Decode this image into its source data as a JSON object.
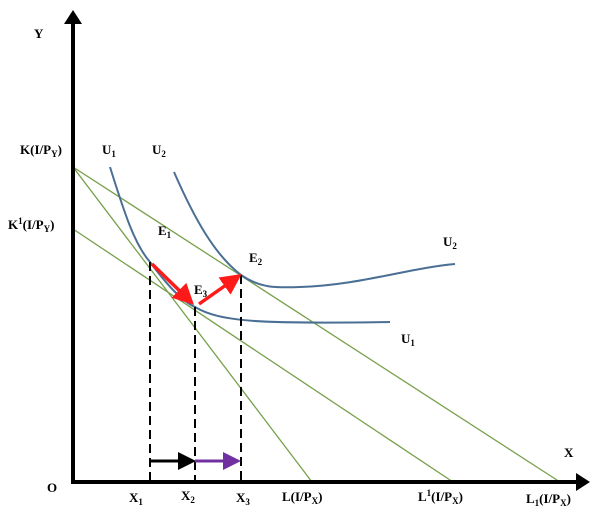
{
  "axes": {
    "y_label": "Y",
    "x_label": "X",
    "origin": "O"
  },
  "y_intercepts": {
    "k": {
      "a": "K(I/P",
      "s": "Y",
      "b": ")"
    },
    "k1": {
      "a": "K",
      "sup": "1",
      "c": "(I/P",
      "s": "Y",
      "b": ")"
    }
  },
  "x_intercepts": {
    "l": {
      "a": "L(I/P",
      "s": "X",
      "b": ")"
    },
    "l_sup1": {
      "a": "L",
      "sup": "1",
      "c": "(I/P",
      "s": "X",
      "b": ")"
    },
    "l_sub1": {
      "a": "L",
      "s1": "1",
      "c": "(I/P",
      "s": "X",
      "b": ")"
    }
  },
  "x_points": [
    {
      "a": "X",
      "s": "1"
    },
    {
      "a": "X",
      "s": "2"
    },
    {
      "a": "X",
      "s": "3"
    }
  ],
  "curves": {
    "u1_top": {
      "a": "U",
      "s": "1"
    },
    "u2_top": {
      "a": "U",
      "s": "2"
    },
    "u2_right": {
      "a": "U",
      "s": "2"
    },
    "u1_right": {
      "a": "U",
      "s": "1"
    }
  },
  "equilibria": {
    "e1": {
      "a": "E",
      "s": "1"
    },
    "e2": {
      "a": "E",
      "s": "2"
    },
    "e3": {
      "a": "E",
      "s": "3"
    }
  },
  "colors": {
    "axis": "#000000",
    "budget_line": "#77a04a",
    "indifference_curve": "#4a6f95",
    "substitution_arrow": "#ff1a1a",
    "x_shift_1": "#000000",
    "x_shift_2": "#7030a0"
  }
}
